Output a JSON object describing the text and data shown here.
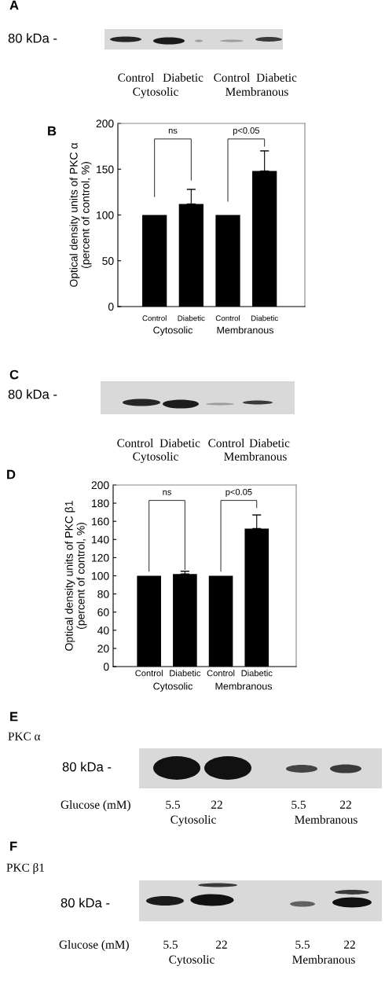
{
  "chart_data": [
    {
      "type": "other",
      "title": "A",
      "annotations": [
        "80 kDa -",
        "Control",
        "Diabetic",
        "Control",
        "Diabetic",
        "Cytosolic",
        "Membranous"
      ]
    },
    {
      "type": "bar",
      "title": "B",
      "categories": [
        "Control",
        "Diabetic",
        "Control",
        "Diabetic"
      ],
      "values": [
        100,
        112,
        100,
        148
      ],
      "errors": [
        null,
        [
          112,
          128
        ],
        null,
        [
          148,
          170
        ]
      ],
      "color": "#000000",
      "ylabel": "Optical density units of PKC α\n(percent of control, %)",
      "ylim": [
        0,
        200
      ],
      "yticks": [
        0,
        50,
        100,
        150,
        200
      ],
      "annotations": [
        "ns",
        "p<0.05",
        "Cytosolic",
        "Membranous"
      ]
    },
    {
      "type": "other",
      "title": "C",
      "annotations": [
        "80 kDa -",
        "Control",
        "Diabetic",
        "Control",
        "Diabetic",
        "Cytosolic",
        "Membranous"
      ]
    },
    {
      "type": "bar",
      "title": "D",
      "categories": [
        "Control",
        "Diabetic",
        "Control",
        "Diabetic"
      ],
      "values": [
        100,
        102,
        100,
        152
      ],
      "errors": [
        null,
        [
          102,
          105
        ],
        null,
        [
          152,
          167
        ]
      ],
      "color": "#000000",
      "ylabel": "Optical density units of PKC β1\n(percent of control, %)",
      "ylim": [
        0,
        200
      ],
      "yticks": [
        0,
        20,
        40,
        60,
        80,
        100,
        120,
        140,
        160,
        180,
        200
      ],
      "annotations": [
        "ns",
        "p<0.05",
        "Cytosolic",
        "Membranous"
      ]
    },
    {
      "type": "other",
      "title": "E",
      "annotations": [
        "PKC α",
        "80 kDa -",
        "Glucose (mM)",
        "5.5",
        "22",
        "5.5",
        "22",
        "Cytosolic",
        "Membranous"
      ]
    },
    {
      "type": "other",
      "title": "F",
      "annotations": [
        "PKC β1",
        "80 kDa -",
        "Glucose (mM)",
        "5.5",
        "22",
        "5.5",
        "22",
        "Cytosolic",
        "Membranous"
      ]
    }
  ]
}
